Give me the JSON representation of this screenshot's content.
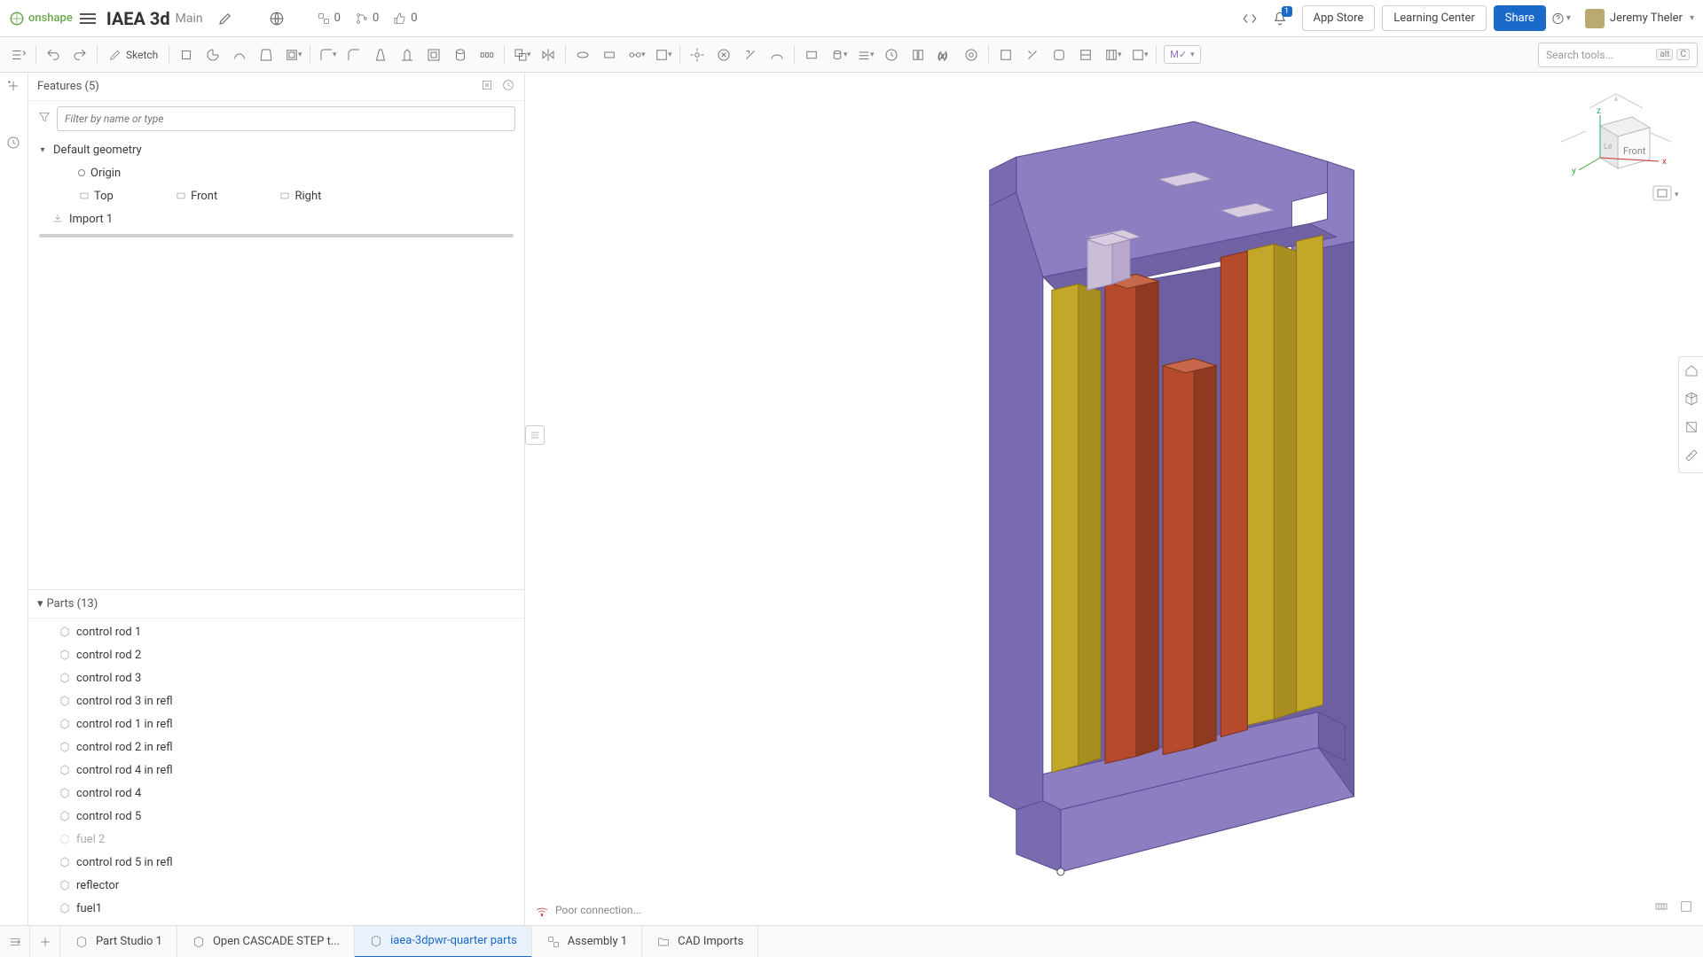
{
  "app": {
    "logo_text": "onshape",
    "doc_title": "IAEA 3d",
    "branch": "Main"
  },
  "topbar_counts": {
    "versions": "0",
    "branches": "0",
    "likes": "0"
  },
  "topbar_buttons": {
    "app_store": "App Store",
    "learning": "Learning Center",
    "share": "Share"
  },
  "notifications": "1",
  "user": {
    "name": "Jeremy Theler"
  },
  "toolbar": {
    "sketch": "Sketch",
    "mate": "M✓",
    "search_placeholder": "Search tools...",
    "kbd1": "alt",
    "kbd2": "C"
  },
  "features": {
    "title": "Features (5)",
    "filter_placeholder": "Filter by name or type",
    "default_geometry": "Default geometry",
    "origin": "Origin",
    "planes": [
      "Top",
      "Front",
      "Right"
    ],
    "import": "Import 1"
  },
  "parts": {
    "title": "Parts (13)",
    "items": [
      {
        "label": "control rod 1",
        "dim": false
      },
      {
        "label": "control rod 2",
        "dim": false
      },
      {
        "label": "control rod 3",
        "dim": false
      },
      {
        "label": "control rod 3 in refl",
        "dim": false
      },
      {
        "label": "control rod 1 in refl",
        "dim": false
      },
      {
        "label": "control rod 2 in refl",
        "dim": false
      },
      {
        "label": "control rod 4 in refl",
        "dim": false
      },
      {
        "label": "control rod 4",
        "dim": false
      },
      {
        "label": "control rod 5",
        "dim": false
      },
      {
        "label": "fuel 2",
        "dim": true
      },
      {
        "label": "control rod 5 in refl",
        "dim": false
      },
      {
        "label": "reflector",
        "dim": false
      },
      {
        "label": "fuel1",
        "dim": false
      }
    ]
  },
  "status": "Poor connection...",
  "tabs": [
    {
      "label": "Part Studio 1",
      "type": "part",
      "active": false
    },
    {
      "label": "Open CASCADE STEP t...",
      "type": "part",
      "active": false
    },
    {
      "label": "iaea-3dpwr-quarter parts",
      "type": "part",
      "active": true
    },
    {
      "label": "Assembly 1",
      "type": "assembly",
      "active": false
    },
    {
      "label": "CAD Imports",
      "type": "folder",
      "active": false
    }
  ],
  "viewcube": {
    "front": "Front",
    "x": "x",
    "y": "y",
    "z": "z"
  },
  "model": {
    "reflector_color": {
      "top": "#8d7ec2",
      "face": "#7a6bb1",
      "side": "#6e5fa3"
    },
    "fuel_color": {
      "front": "#c3a729",
      "side": "#a98f20",
      "top": "#d6be4a"
    },
    "rod_color": {
      "front": "#b54a2c",
      "side": "#8f3920",
      "top": "#c7684c"
    },
    "lightrod_color": {
      "top": "#d8cde0",
      "front": "#cabdd6",
      "side": "#b8a9cc"
    }
  }
}
